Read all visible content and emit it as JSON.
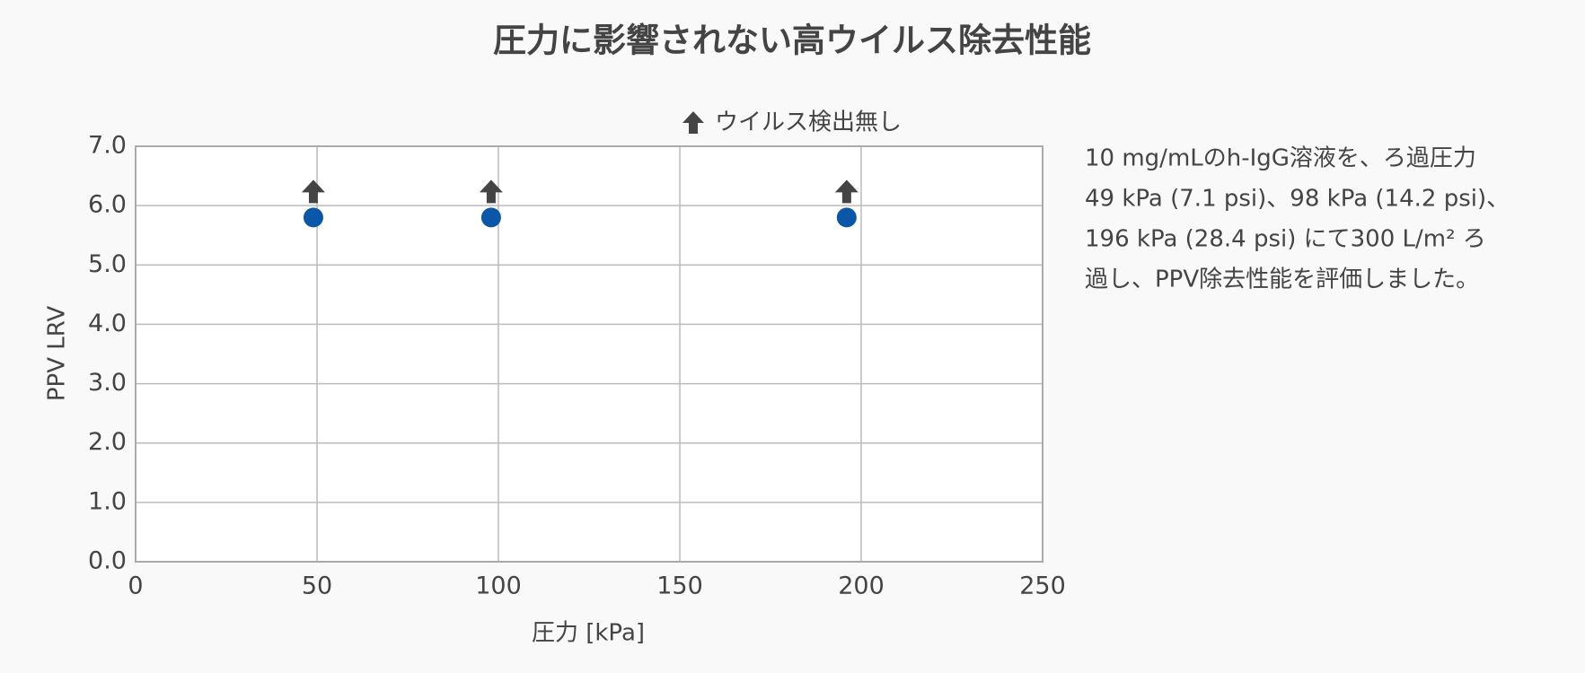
{
  "chart_data": {
    "type": "scatter",
    "title": "圧力に影響されない高ウイルス除去性能",
    "x_label": "圧力 [kPa]",
    "y_label": "PPV LRV",
    "annotation": "ウイルス検出無し",
    "series": [
      {
        "name": "PPV LRV",
        "color": "#0b56a6",
        "x": [
          49,
          98,
          196
        ],
        "values": [
          5.8,
          5.8,
          5.8
        ]
      }
    ],
    "xlim": [
      0,
      250
    ],
    "xticks": [
      0,
      50,
      100,
      150,
      200,
      250
    ],
    "ylim": [
      0,
      7
    ],
    "yticks": [
      {
        "value": 0,
        "label": "0.0"
      },
      {
        "value": 1,
        "label": "1.0"
      },
      {
        "value": 2,
        "label": "2.0"
      },
      {
        "value": 3,
        "label": "3.0"
      },
      {
        "value": 4,
        "label": "4.0"
      },
      {
        "value": 5,
        "label": "5.0"
      },
      {
        "value": 6,
        "label": "6.0"
      },
      {
        "value": 7,
        "label": "7.0"
      }
    ],
    "grid": true
  },
  "description": {
    "lines": [
      "10 mg/mLのh-IgG溶液を、ろ過圧力",
      "49 kPa (7.1 psi)、98 kPa (14.2 psi)、",
      "196 kPa (28.4 psi) にて300 L/m² ろ",
      "過し、PPV除去性能を評価しました。"
    ]
  }
}
